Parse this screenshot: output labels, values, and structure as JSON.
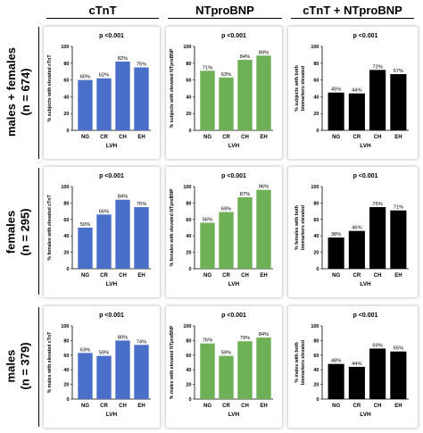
{
  "columns": [
    "cTnT",
    "NTproBNP",
    "cTnT + NTproBNP"
  ],
  "rows": [
    {
      "label": "males + females",
      "n": "(n = 674)"
    },
    {
      "label": "females",
      "n": "(n = 295)"
    },
    {
      "label": "males",
      "n": "(n = 379)"
    }
  ],
  "colors": {
    "ctnt": "#4a6fc9",
    "ntprobnp": "#6db056",
    "both": "#000000"
  },
  "chart_data": [
    {
      "type": "bar",
      "title": "p <0.001",
      "xlabel": "LVH",
      "ylabel": "% subjects with elevated cTnT",
      "categories": [
        "NG",
        "CR",
        "CH",
        "EH"
      ],
      "values": [
        60,
        62,
        82,
        75
      ],
      "data_labels": [
        "60%",
        "62%",
        "82%",
        "75%"
      ],
      "ylim": [
        0,
        100
      ],
      "yticks": [
        "0",
        "20",
        "40",
        "60",
        "80",
        "100"
      ],
      "color": "#4a6fc9"
    },
    {
      "type": "bar",
      "title": "p <0.001",
      "xlabel": "LVH",
      "ylabel": "% subjects with elevated NTproBNP",
      "categories": [
        "NG",
        "CR",
        "CH",
        "EH"
      ],
      "values": [
        71,
        63,
        84,
        89
      ],
      "data_labels": [
        "71%",
        "63%",
        "84%",
        "89%"
      ],
      "ylim": [
        0,
        100
      ],
      "yticks": [
        "0",
        "20",
        "40",
        "60",
        "80",
        "100"
      ],
      "color": "#6db056"
    },
    {
      "type": "bar",
      "title": "p <0.001",
      "xlabel": "LVH",
      "ylabel": "% subjects with both biomarkers elevated",
      "categories": [
        "NG",
        "CR",
        "CH",
        "EH"
      ],
      "values": [
        45,
        44,
        72,
        67
      ],
      "data_labels": [
        "45%",
        "44%",
        "72%",
        "67%"
      ],
      "ylim": [
        0,
        100
      ],
      "yticks": [
        "0",
        "20",
        "40",
        "60",
        "80",
        "100"
      ],
      "color": "#000000"
    },
    {
      "type": "bar",
      "title": "p <0.001",
      "xlabel": "LVH",
      "ylabel": "% females with elevated cTnT",
      "categories": [
        "NG",
        "CR",
        "CH",
        "EH"
      ],
      "values": [
        50,
        66,
        84,
        75
      ],
      "data_labels": [
        "50%",
        "66%",
        "84%",
        "75%"
      ],
      "ylim": [
        0,
        100
      ],
      "yticks": [
        "0",
        "20",
        "40",
        "60",
        "80",
        "100"
      ],
      "color": "#4a6fc9"
    },
    {
      "type": "bar",
      "title": "p <0.001",
      "xlabel": "LVH",
      "ylabel": "% females with elevated NTproBNP",
      "categories": [
        "NG",
        "CR",
        "CH",
        "EH"
      ],
      "values": [
        56,
        69,
        87,
        96
      ],
      "data_labels": [
        "56%",
        "69%",
        "87%",
        "96%"
      ],
      "ylim": [
        0,
        100
      ],
      "yticks": [
        "0",
        "20",
        "40",
        "60",
        "80",
        "100"
      ],
      "color": "#6db056"
    },
    {
      "type": "bar",
      "title": "p <0.001",
      "xlabel": "LVH",
      "ylabel": "% females with both biomarkers elevated",
      "categories": [
        "NG",
        "CR",
        "CH",
        "EH"
      ],
      "values": [
        38,
        46,
        75,
        71
      ],
      "data_labels": [
        "38%",
        "46%",
        "75%",
        "71%"
      ],
      "ylim": [
        0,
        100
      ],
      "yticks": [
        "0",
        "20",
        "40",
        "60",
        "80",
        "100"
      ],
      "color": "#000000"
    },
    {
      "type": "bar",
      "title": "p <0.001",
      "xlabel": "LVH",
      "ylabel": "% males with elevated cTnT",
      "categories": [
        "NG",
        "CR",
        "CH",
        "EH"
      ],
      "values": [
        63,
        59,
        80,
        74
      ],
      "data_labels": [
        "63%",
        "59%",
        "80%",
        "74%"
      ],
      "ylim": [
        0,
        100
      ],
      "yticks": [
        "0",
        "20",
        "40",
        "60",
        "80",
        "100"
      ],
      "color": "#4a6fc9"
    },
    {
      "type": "bar",
      "title": "p <0.001",
      "xlabel": "LVH",
      "ylabel": "% males with elevated NTproBNP",
      "categories": [
        "NG",
        "CR",
        "CH",
        "EH"
      ],
      "values": [
        76,
        59,
        79,
        84
      ],
      "data_labels": [
        "76%",
        "59%",
        "79%",
        "84%"
      ],
      "ylim": [
        0,
        100
      ],
      "yticks": [
        "0",
        "20",
        "40",
        "60",
        "80",
        "100"
      ],
      "color": "#6db056"
    },
    {
      "type": "bar",
      "title": "p <0.001",
      "xlabel": "LVH",
      "ylabel": "% males with both biomarkers elevated",
      "categories": [
        "NG",
        "CR",
        "CH",
        "EH"
      ],
      "values": [
        48,
        44,
        69,
        65
      ],
      "data_labels": [
        "48%",
        "44%",
        "69%",
        "65%"
      ],
      "ylim": [
        0,
        100
      ],
      "yticks": [
        "0",
        "20",
        "40",
        "60",
        "80",
        "100"
      ],
      "color": "#000000"
    }
  ]
}
